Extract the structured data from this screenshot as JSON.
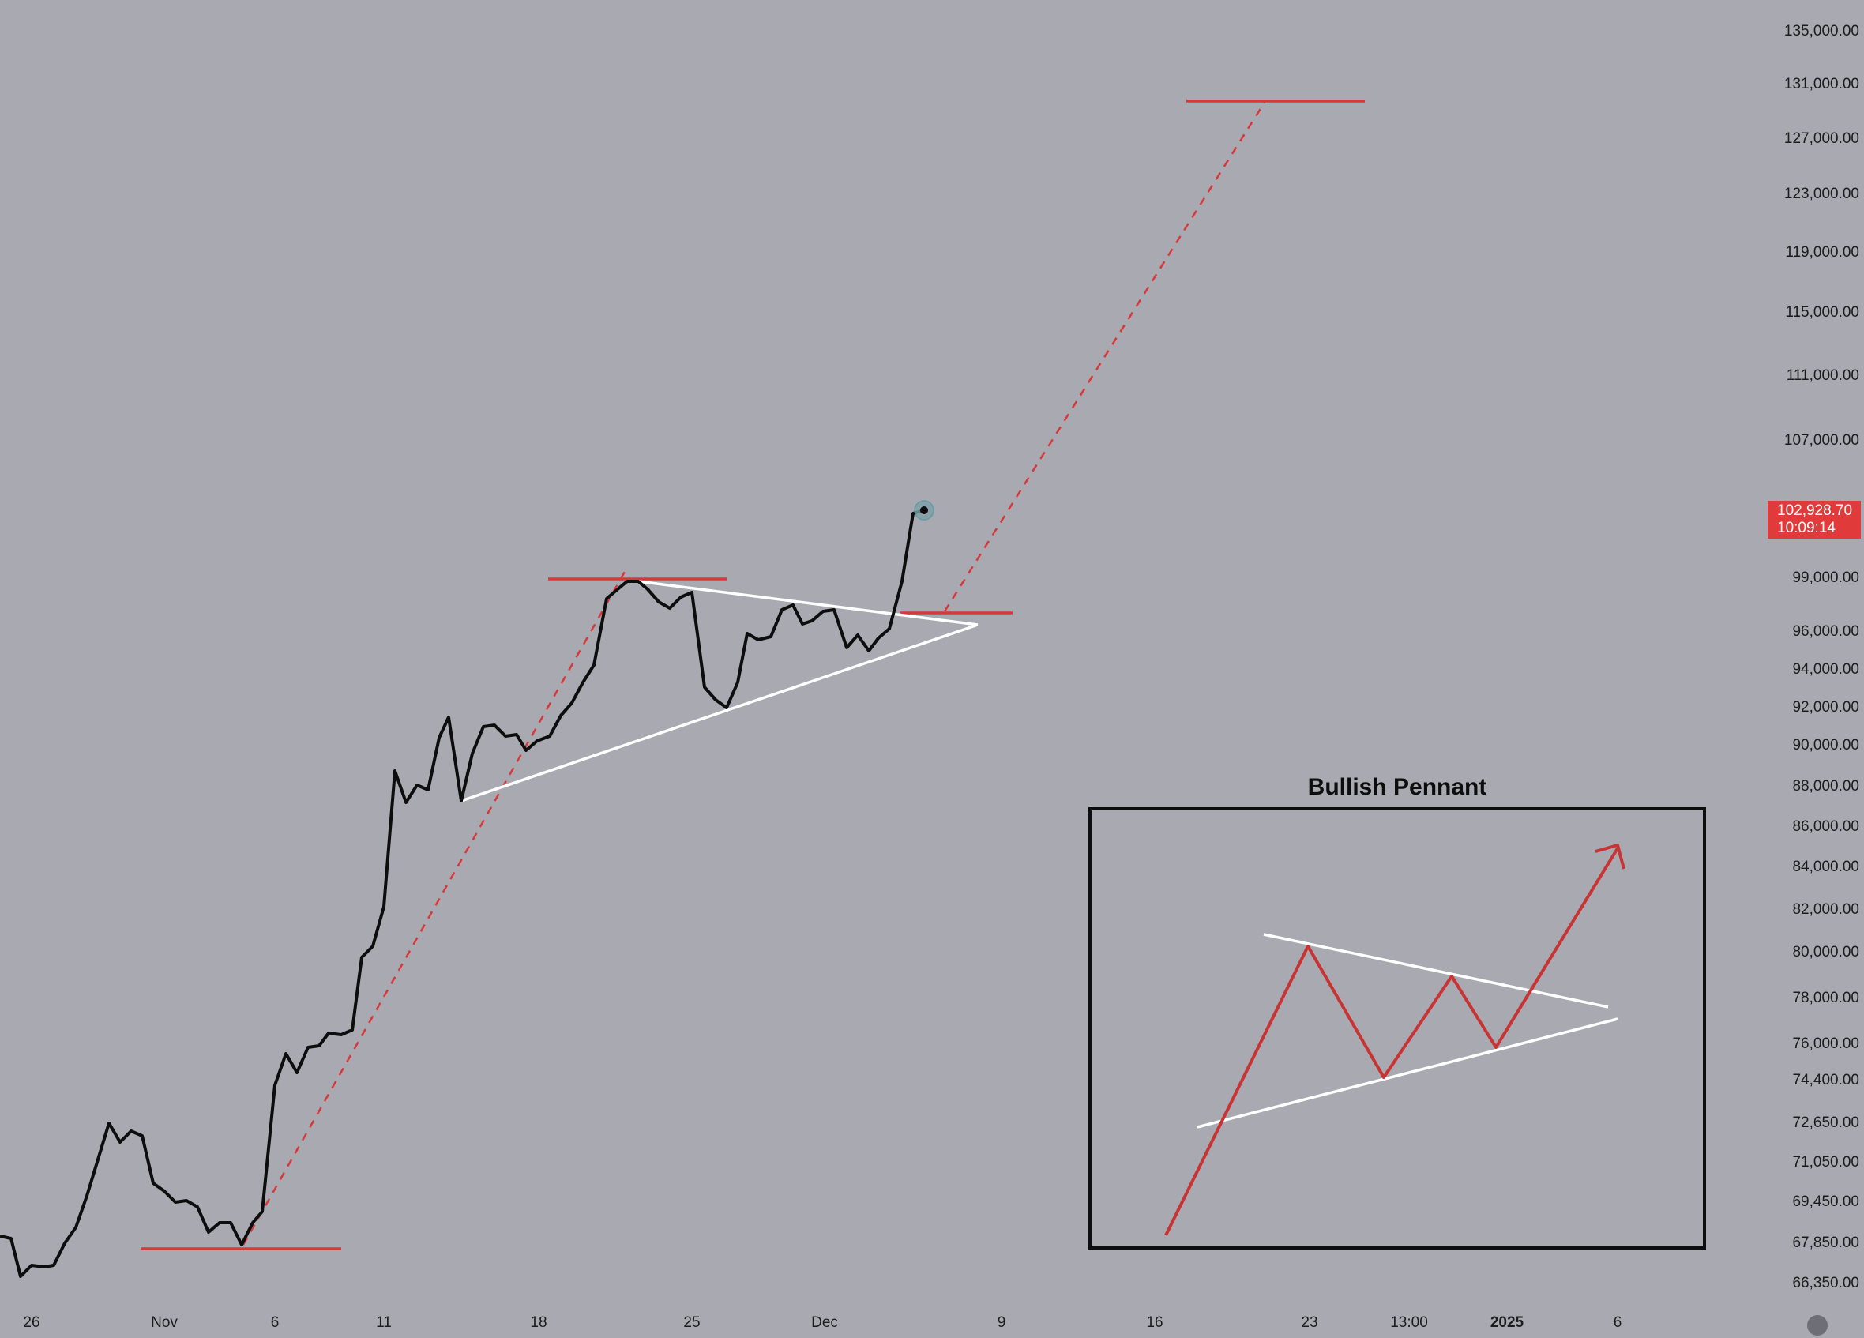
{
  "chart_data": {
    "type": "line",
    "title": "",
    "xlabel": "",
    "ylabel": "",
    "price_axis_labels": [
      "135,000.00",
      "131,000.00",
      "127,000.00",
      "123,000.00",
      "119,000.00",
      "115,000.00",
      "111,000.00",
      "107,000.00",
      "99,000.00",
      "96,000.00",
      "94,000.00",
      "92,000.00",
      "90,000.00",
      "88,000.00",
      "86,000.00",
      "84,000.00",
      "82,000.00",
      "80,000.00",
      "78,000.00",
      "76,000.00",
      "74,400.00",
      "72,650.00",
      "71,050.00",
      "69,450.00",
      "67,850.00",
      "66,350.00"
    ],
    "date_axis_labels": [
      "26",
      "Nov",
      "6",
      "11",
      "18",
      "25",
      "Dec",
      "9",
      "16",
      "23",
      "13:00",
      "2025",
      "6"
    ],
    "bold_date_labels": [
      "2025"
    ],
    "current_price": "102,928.70",
    "countdown": "10:09:14",
    "series": [
      {
        "color": "#0d0d0d",
        "points": [
          [
            "Oct 24",
            69350
          ],
          [
            "Oct 25",
            69200
          ],
          [
            "Oct 26",
            67150
          ],
          [
            "Oct 27",
            67600
          ],
          [
            "Oct 28",
            68600
          ],
          [
            "Oct 29",
            70200
          ],
          [
            "Oct 30",
            72500
          ],
          [
            "Oct 31",
            71400
          ],
          [
            "Nov 1",
            72100
          ],
          [
            "Nov 2",
            71800
          ],
          [
            "Nov 3",
            70200
          ],
          [
            "Nov 4",
            69700
          ],
          [
            "Nov 5",
            69400
          ],
          [
            "Nov 6",
            68100
          ],
          [
            "Nov 7",
            68550
          ],
          [
            "Nov 8",
            67850
          ],
          [
            "Nov 9",
            69200
          ],
          [
            "Nov 10",
            75800
          ],
          [
            "Nov 11",
            75600
          ],
          [
            "Nov 12",
            77500
          ],
          [
            "Nov 13",
            79800
          ],
          [
            "Nov 14",
            81700
          ],
          [
            "Nov 15",
            87700
          ],
          [
            "Nov 16",
            86800
          ],
          [
            "Nov 17",
            89300
          ],
          [
            "Nov 18",
            91300
          ],
          [
            "Nov 19",
            90400
          ],
          [
            "Nov 20",
            90700
          ],
          [
            "Nov 21",
            90500
          ],
          [
            "Nov 22",
            90200
          ],
          [
            "Nov 23",
            91600
          ],
          [
            "Nov 24",
            93700
          ],
          [
            "Nov 25",
            97800
          ],
          [
            "Nov 26",
            98400
          ],
          [
            "Nov 27",
            97800
          ],
          [
            "Nov 28",
            97600
          ],
          [
            "Nov 29",
            96300
          ],
          [
            "Nov 30",
            92600
          ],
          [
            "Dec 1",
            91800
          ],
          [
            "Dec 2",
            92700
          ],
          [
            "Dec 3",
            95300
          ],
          [
            "Dec 4",
            95200
          ],
          [
            "Dec 5",
            96800
          ],
          [
            "Dec 6",
            95900
          ],
          [
            "Dec 7",
            96600
          ],
          [
            "Dec 8",
            96000
          ],
          [
            "Dec 9",
            95300
          ],
          [
            "Dec 10",
            95700
          ],
          [
            "Dec 11",
            97200
          ],
          [
            "Dec 12",
            102928.7
          ]
        ]
      }
    ],
    "annotations": {
      "support_line": 67850,
      "resistance_line": 98400,
      "breakout_line": 97400,
      "target_line": 130800
    },
    "inset": {
      "title": "Bullish Pennant"
    },
    "grid": false
  }
}
